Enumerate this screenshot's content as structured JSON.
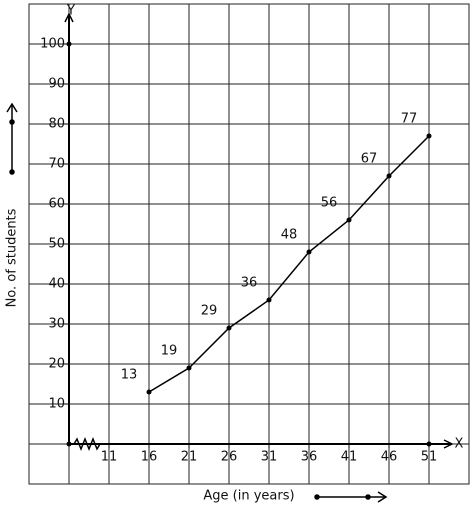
{
  "chart_data": {
    "type": "line",
    "x_label": "Age (in years)",
    "y_label": "No. of students",
    "x_axis_name": "X",
    "y_axis_name": "Y",
    "x": [
      16,
      21,
      26,
      31,
      36,
      41,
      46,
      51
    ],
    "values": [
      13,
      19,
      29,
      36,
      48,
      56,
      67,
      77
    ],
    "color": "#000000",
    "xlim": [
      1,
      56
    ],
    "xticks": [
      11,
      16,
      21,
      26,
      31,
      36,
      41,
      46,
      51
    ],
    "ylim": [
      -10,
      110
    ],
    "yticks": [
      10,
      20,
      30,
      40,
      50,
      60,
      70,
      80,
      90,
      100
    ],
    "grid": true
  }
}
